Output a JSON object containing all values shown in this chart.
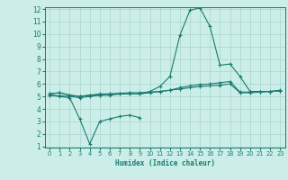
{
  "xlabel": "Humidex (Indice chaleur)",
  "x": [
    0,
    1,
    2,
    3,
    4,
    5,
    6,
    7,
    8,
    9,
    10,
    11,
    12,
    13,
    14,
    15,
    16,
    17,
    18,
    19,
    20,
    21,
    22,
    23
  ],
  "line1": [
    5.2,
    5.3,
    5.1,
    5.0,
    5.1,
    5.1,
    5.1,
    5.2,
    5.2,
    5.2,
    5.3,
    5.4,
    5.5,
    5.7,
    5.85,
    5.95,
    6.0,
    6.1,
    6.2,
    5.35,
    5.35,
    5.4,
    5.4,
    5.45
  ],
  "line2": [
    5.2,
    5.3,
    5.1,
    5.0,
    5.1,
    5.2,
    5.2,
    5.2,
    5.2,
    5.2,
    5.4,
    5.8,
    6.6,
    9.9,
    11.9,
    12.1,
    10.6,
    7.5,
    7.6,
    6.6,
    5.4,
    5.4,
    5.4,
    5.5
  ],
  "line3_x": [
    0,
    1,
    2,
    3,
    4,
    5,
    6,
    7,
    8,
    9
  ],
  "line3": [
    5.1,
    5.0,
    4.9,
    3.2,
    1.2,
    3.0,
    3.2,
    3.4,
    3.5,
    3.3
  ],
  "line4": [
    5.1,
    5.05,
    5.0,
    4.9,
    5.0,
    5.1,
    5.2,
    5.25,
    5.3,
    5.3,
    5.35,
    5.4,
    5.5,
    5.6,
    5.7,
    5.8,
    5.85,
    5.9,
    6.0,
    5.3,
    5.3,
    5.35,
    5.4,
    5.45
  ],
  "color": "#1a7a6e",
  "bg_color": "#cceee8",
  "grid_color": "#aad4ce",
  "ylim": [
    1,
    12
  ],
  "xlim": [
    -0.5,
    23.5
  ],
  "yticks": [
    1,
    2,
    3,
    4,
    5,
    6,
    7,
    8,
    9,
    10,
    11,
    12
  ],
  "xticks": [
    0,
    1,
    2,
    3,
    4,
    5,
    6,
    7,
    8,
    9,
    10,
    11,
    12,
    13,
    14,
    15,
    16,
    17,
    18,
    19,
    20,
    21,
    22,
    23
  ]
}
